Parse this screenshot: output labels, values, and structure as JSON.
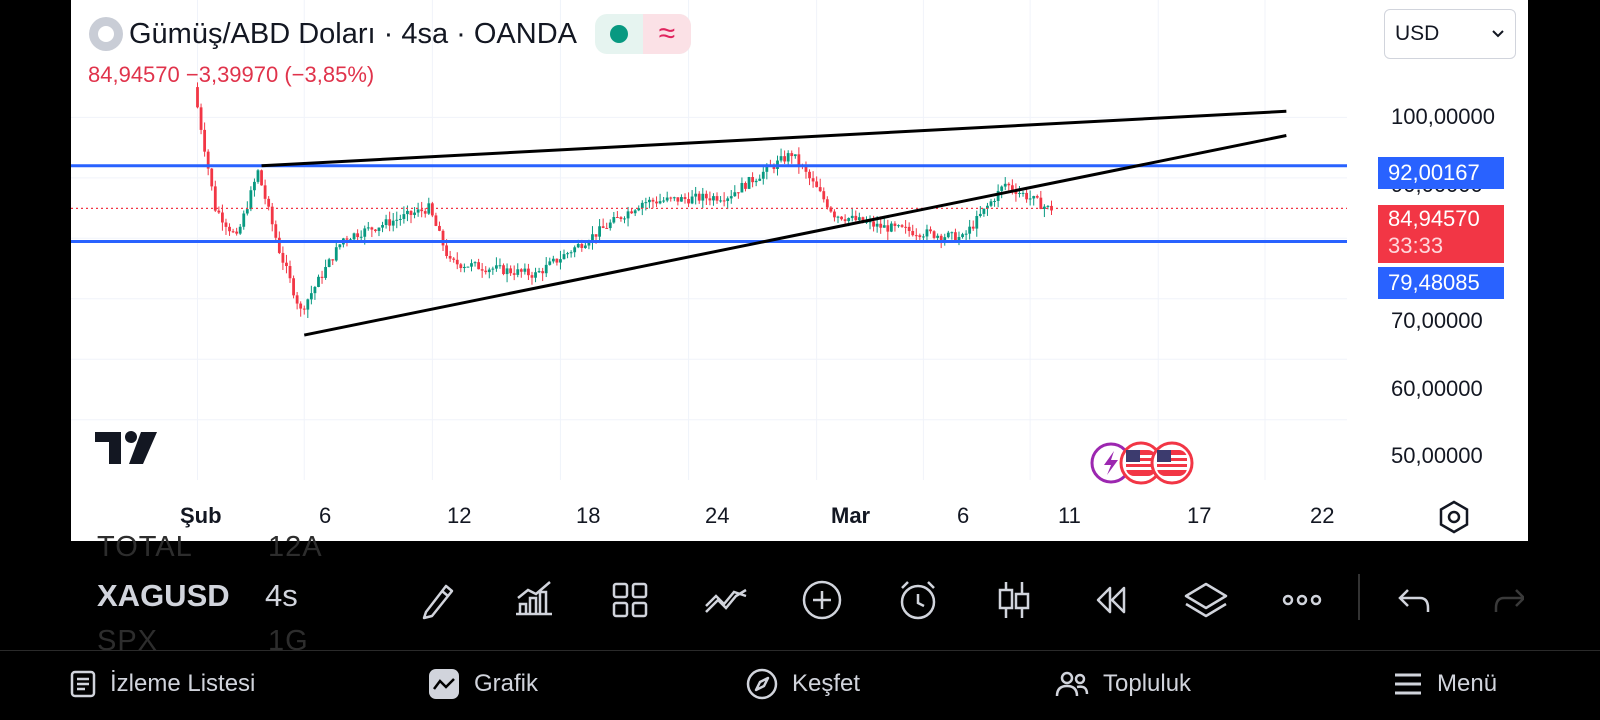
{
  "header": {
    "title": "Gümüş/ABD Doları · 4sa · OANDA",
    "price_line": "84,94570  −3,39970 (−3,85%)",
    "currency": "USD"
  },
  "price_axis": {
    "labels": [
      "100,00000",
      "90,00000",
      "70,00000",
      "60,00000",
      "50,00000"
    ],
    "tags": {
      "resistance": "92,00167",
      "current_price": "84,94570",
      "countdown": "33:33",
      "support": "79,48085"
    }
  },
  "time_axis": {
    "labels": [
      "Şub",
      "6",
      "12",
      "18",
      "24",
      "Mar",
      "6",
      "11",
      "17",
      "22"
    ]
  },
  "chart_data": {
    "type": "candlestick",
    "symbol": "XAGUSD",
    "interval": "4sa",
    "last_price": 84.9457,
    "y_range": [
      45,
      107
    ],
    "horizontal_lines": [
      92.00167,
      79.48085
    ],
    "trend_lines": [
      {
        "from": [
          "Şub 4",
          92
        ],
        "to": [
          "Mar 23",
          101
        ]
      },
      {
        "from": [
          "Şub 6",
          64
        ],
        "to": [
          "Mar 23",
          97
        ]
      }
    ],
    "approx_path": [
      [
        "Şub 1",
        105
      ],
      [
        "Şub 2",
        85
      ],
      [
        "Şub 3",
        80
      ],
      [
        "Şub 4",
        91
      ],
      [
        "Şub 5",
        78
      ],
      [
        "Şub 6",
        68
      ],
      [
        "Şub 8",
        80
      ],
      [
        "Şub 12",
        85
      ],
      [
        "Şub 13",
        76
      ],
      [
        "Şub 17",
        74
      ],
      [
        "Şub 22",
        86
      ],
      [
        "Şub 26",
        87
      ],
      [
        "Şub 29",
        94
      ],
      [
        "Mar 2",
        84
      ],
      [
        "Mar 4",
        82
      ],
      [
        "Mar 8",
        80
      ],
      [
        "Mar 10",
        89
      ],
      [
        "Mar 12",
        84.9457
      ]
    ]
  },
  "toolbar": {
    "watch_rows": [
      "TOTAL",
      "XAGUSD",
      "SPX"
    ],
    "watch_intervals": [
      "12A",
      "4s",
      "1G"
    ],
    "icons": [
      "pencil-icon",
      "indicators-icon",
      "layouts-icon",
      "compare-icon",
      "add-icon",
      "alarm-icon",
      "candle-type-icon",
      "replay-icon",
      "layers-icon",
      "more-icon",
      "undo-icon",
      "redo-icon"
    ]
  },
  "bottom_nav": {
    "items": [
      {
        "label": "İzleme Listesi",
        "icon": "watchlist-icon"
      },
      {
        "label": "Grafik",
        "icon": "chart-icon"
      },
      {
        "label": "Keşfet",
        "icon": "compass-icon"
      },
      {
        "label": "Topluluk",
        "icon": "community-icon"
      },
      {
        "label": "Menü",
        "icon": "menu-icon"
      }
    ]
  },
  "colors": {
    "up": "#089981",
    "down": "#f23645",
    "level_line": "#2962ff",
    "price_tag": "#f23645"
  }
}
